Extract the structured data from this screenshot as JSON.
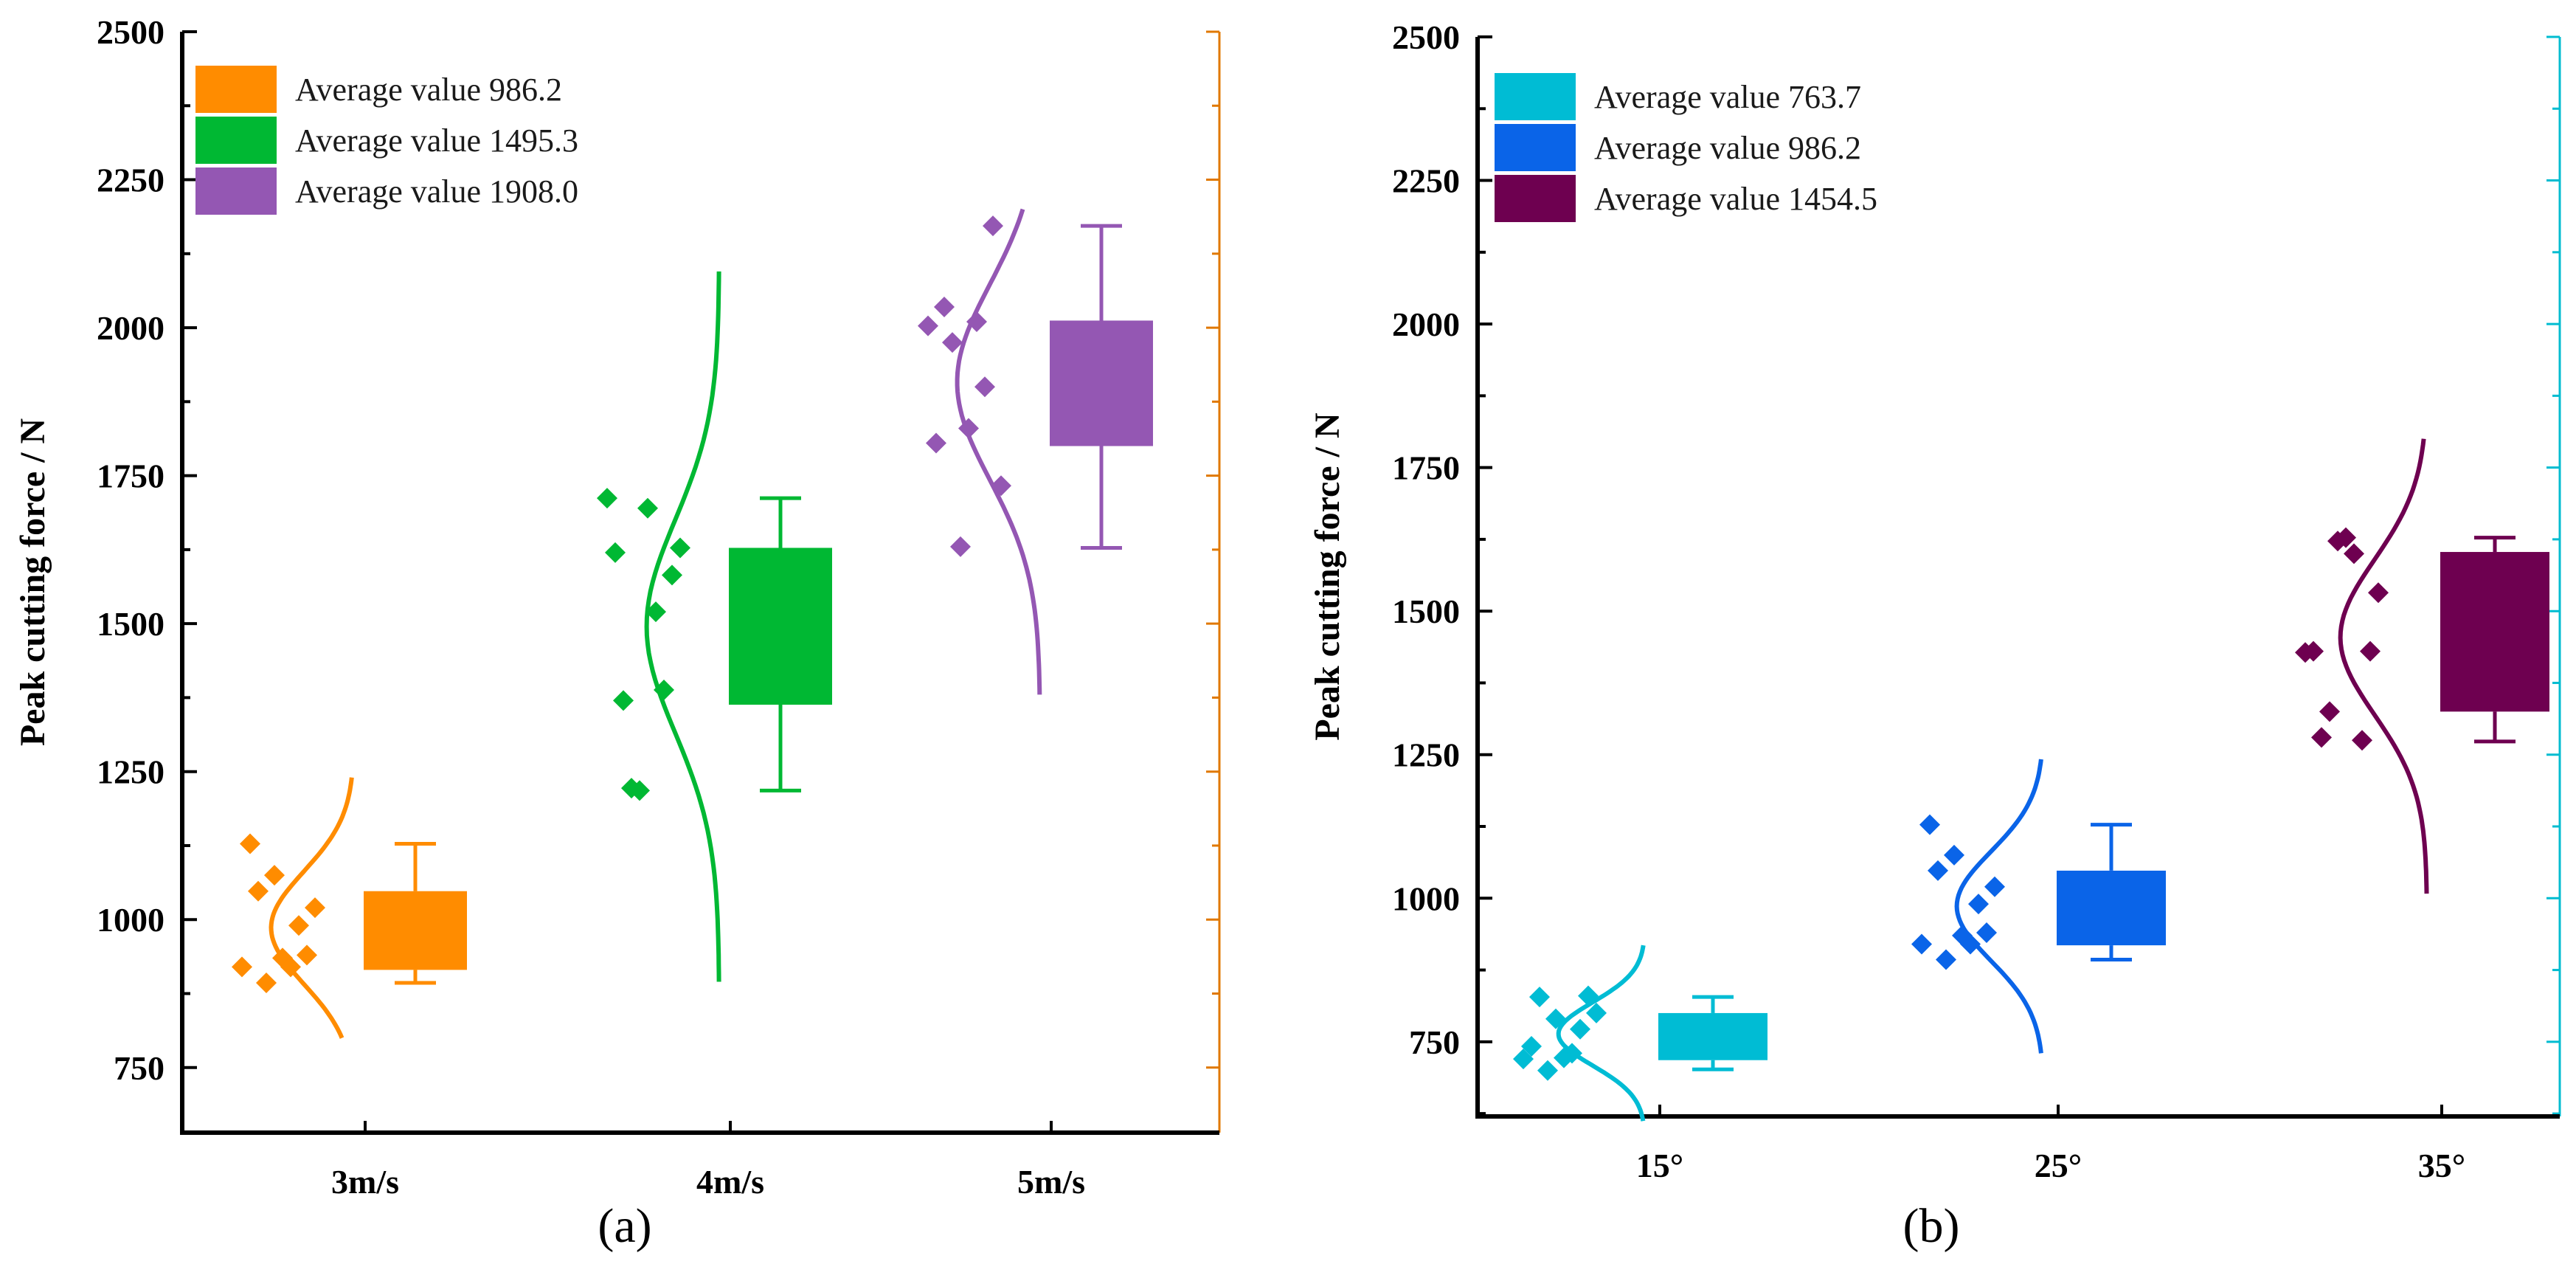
{
  "chart_data": [
    {
      "type": "box",
      "panel_label": "(a)",
      "ylabel": "Peak cutting force / N",
      "xlabel": "",
      "ylim": [
        640,
        2500
      ],
      "yticks": [
        750,
        1000,
        1250,
        1500,
        1750,
        2000,
        2250,
        2500
      ],
      "right_axis_color": "#E07800",
      "categories": [
        "3m/s",
        "4m/s",
        "5m/s"
      ],
      "series": [
        {
          "name": "Average value 986.2",
          "category": "3m/s",
          "color": "#FF8C00",
          "box": {
            "q1": 915,
            "q3": 1048,
            "whisker_low": 893,
            "whisker_high": 1128
          },
          "points": [
            920,
            990,
            1075,
            1128,
            940,
            935,
            1048,
            1020,
            920,
            893
          ],
          "distribution": {
            "mean": 986.2,
            "sd": 95,
            "ymin": 800,
            "ymax": 1240,
            "width_frac": 0.16
          }
        },
        {
          "name": "Average value 1495.3",
          "category": "4m/s",
          "color": "#00B833",
          "box": {
            "q1": 1363,
            "q3": 1628,
            "whisker_low": 1218,
            "whisker_high": 1712
          },
          "points": [
            1712,
            1388,
            1218,
            1620,
            1582,
            1695,
            1370,
            1628,
            1520,
            1222
          ],
          "distribution": {
            "mean": 1495.3,
            "sd": 180,
            "ymin": 895,
            "ymax": 2095,
            "width_frac": 0.14
          }
        },
        {
          "name": "Average value 1908.0",
          "category": "5m/s",
          "color": "#9457B3",
          "box": {
            "q1": 1800,
            "q3": 2012,
            "whisker_low": 1628,
            "whisker_high": 2172
          },
          "points": [
            2003,
            1900,
            1630,
            1805,
            2172,
            1830,
            2035,
            1733,
            2010,
            1975
          ],
          "distribution": {
            "mean": 1908.0,
            "sd": 165,
            "ymin": 1380,
            "ymax": 2200,
            "width_frac": 0.16
          }
        }
      ]
    },
    {
      "type": "box",
      "panel_label": "(b)",
      "ylabel": "Peak cutting force / N",
      "xlabel": "",
      "ylim": [
        620,
        2500
      ],
      "yticks": [
        750,
        1000,
        1250,
        1500,
        1750,
        2000,
        2250,
        2500
      ],
      "right_axis_color": "#00BCD0",
      "categories": [
        "15°",
        "25°",
        "35°"
      ],
      "series": [
        {
          "name": "Average value 763.7",
          "category": "15°",
          "color": "#00BCD4",
          "box": {
            "q1": 718,
            "q3": 800,
            "whisker_low": 702,
            "whisker_high": 828
          },
          "points": [
            720,
            772,
            790,
            742,
            830,
            722,
            828,
            800,
            730,
            700
          ],
          "distribution": {
            "mean": 763.7,
            "sd": 55,
            "ymin": 612,
            "ymax": 918,
            "width_frac": 0.16
          }
        },
        {
          "name": "Average value 986.2",
          "category": "25°",
          "color": "#0A64E8",
          "box": {
            "q1": 918,
            "q3": 1048,
            "whisker_low": 893,
            "whisker_high": 1128
          },
          "points": [
            920,
            990,
            1075,
            1128,
            940,
            935,
            1048,
            1020,
            920,
            893
          ],
          "distribution": {
            "mean": 986.2,
            "sd": 95,
            "ymin": 730,
            "ymax": 1242,
            "width_frac": 0.16
          }
        },
        {
          "name": "Average value 1454.5",
          "category": "35°",
          "color": "#6E0050",
          "box": {
            "q1": 1325,
            "q3": 1603,
            "whisker_low": 1273,
            "whisker_high": 1628
          },
          "points": [
            1428,
            1275,
            1622,
            1430,
            1430,
            1628,
            1280,
            1532,
            1600,
            1325
          ],
          "distribution": {
            "mean": 1454.5,
            "sd": 135,
            "ymin": 1008,
            "ymax": 1800,
            "width_frac": 0.16
          }
        }
      ]
    }
  ]
}
